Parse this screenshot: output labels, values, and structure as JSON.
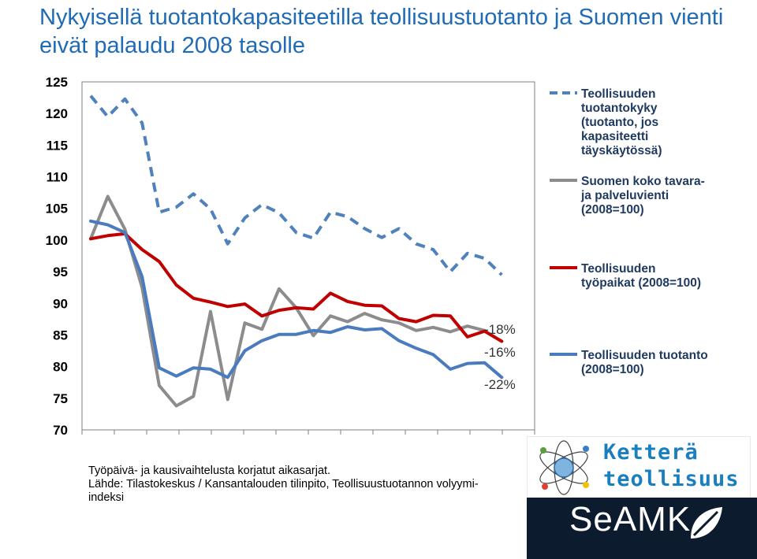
{
  "title": "Nykyisellä tuotantokapasiteetilla teollisuustuotanto ja Suomen vienti eivät palaudu 2008 tasolle",
  "note_line1": "Työpäivä- ja kausivaihtelusta korjatut aikasarjat.",
  "note_line2": "Lähde: Tilastokeskus / Kansantalouden tilinpito, Teollisuustuotannon volyymi-indeksi",
  "logo_text_top": "Ketterä",
  "logo_text_bottom": "teollisuus",
  "brand_name": "SeAMK",
  "chart_data": {
    "type": "line",
    "ylim": [
      70,
      125
    ],
    "yticks": [
      70,
      75,
      80,
      85,
      90,
      95,
      100,
      105,
      110,
      115,
      120,
      125
    ],
    "x_count": 26,
    "series": [
      {
        "name": "Teollisuuden tuotantokyky (tuotanto, jos kapasiteetti täyskäytössä)",
        "color": "#4f81bd",
        "dash": true,
        "start_index": 0,
        "values": [
          122.8,
          119.5,
          122.3,
          118.5,
          104.4,
          105.2,
          107.3,
          104.9,
          99.4,
          103.5,
          105.6,
          104.3,
          101.2,
          100.3,
          104.4,
          103.7,
          101.8,
          100.4,
          101.8,
          99.4,
          98.5,
          95.0,
          97.9,
          97.1,
          94.5
        ]
      },
      {
        "name": "Suomen koko tavara- ja palveluvienti (2008=100)",
        "color": "#8c8c8c",
        "dash": false,
        "start_index": 0,
        "values": [
          100.2,
          106.9,
          101.7,
          92.5,
          77.0,
          73.8,
          75.3,
          88.7,
          74.8,
          86.9,
          85.9,
          92.3,
          89.3,
          84.9,
          88.0,
          87.1,
          88.4,
          87.4,
          86.9,
          85.7,
          86.2,
          85.5,
          86.4,
          85.7
        ]
      },
      {
        "name": "Teollisuuden työpaikat (2008=100)",
        "color": "#c00000",
        "dash": false,
        "start_index": 0,
        "values": [
          100.2,
          100.7,
          101.0,
          98.5,
          96.6,
          92.9,
          90.8,
          90.2,
          89.5,
          89.9,
          88.0,
          88.9,
          89.3,
          89.1,
          91.6,
          90.3,
          89.7,
          89.6,
          87.6,
          87.1,
          88.1,
          88.0,
          84.7,
          85.6,
          84.0
        ]
      },
      {
        "name": "Teollisuuden tuotanto (2008=100)",
        "color": "#4a7bbf",
        "dash": false,
        "start_index": 0,
        "values": [
          103.0,
          102.4,
          101.2,
          94.2,
          79.8,
          78.5,
          79.8,
          79.6,
          78.3,
          82.5,
          84.1,
          85.1,
          85.1,
          85.7,
          85.4,
          86.3,
          85.8,
          86.0,
          84.1,
          82.9,
          81.9,
          79.6,
          80.5,
          80.6,
          78.3
        ]
      }
    ],
    "end_labels": [
      "-18%",
      "-16%",
      "-22%"
    ]
  }
}
